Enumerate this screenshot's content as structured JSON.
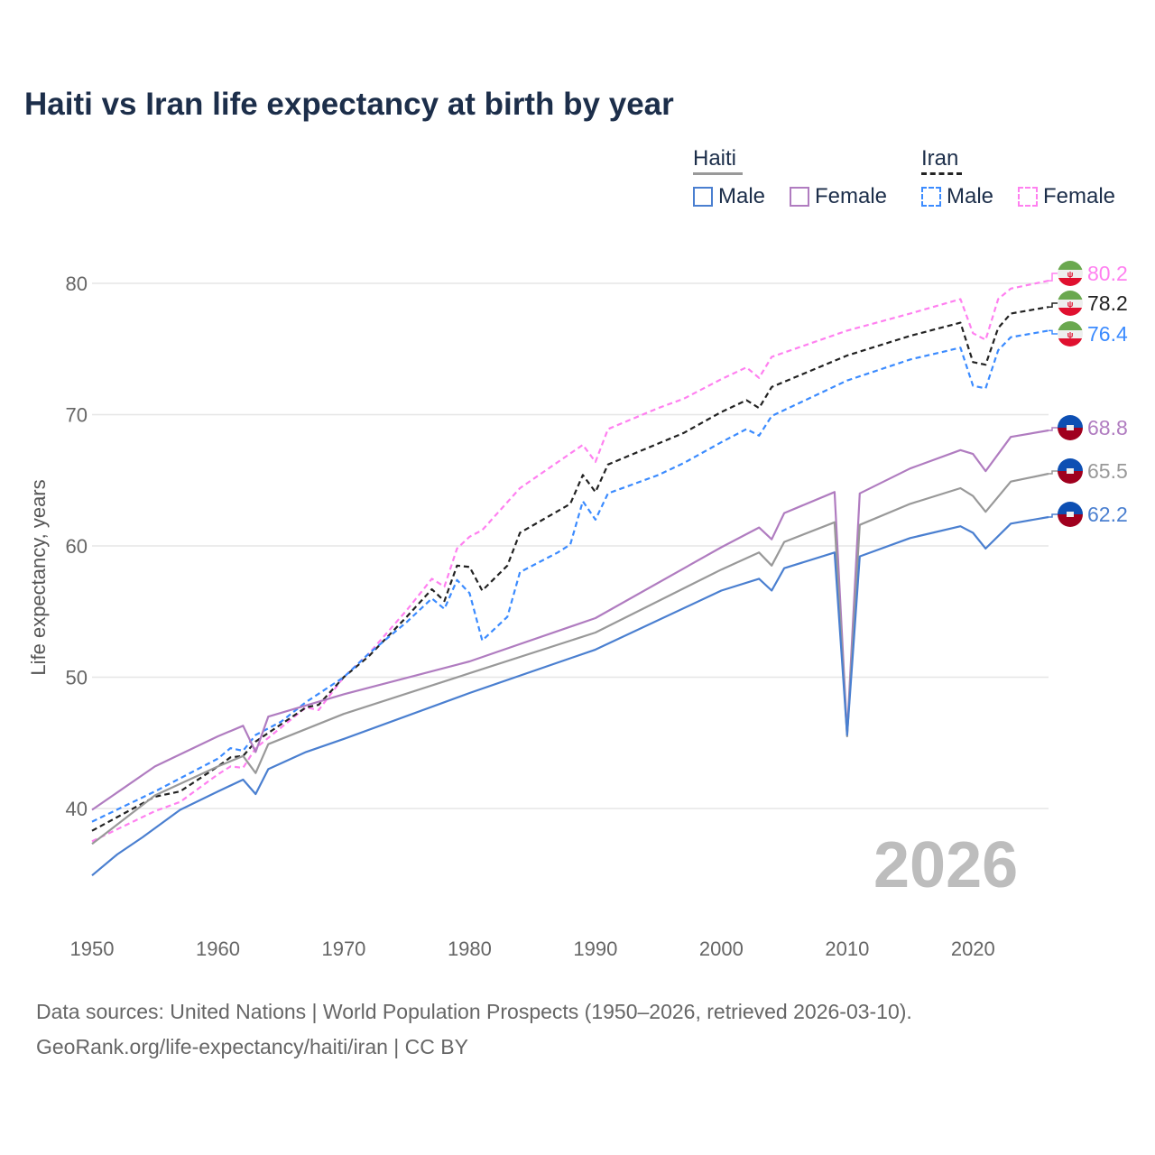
{
  "chart_data": {
    "type": "line",
    "title": "Haiti vs Iran life expectancy at birth by year",
    "xlabel": "",
    "ylabel": "Life expectancy, years",
    "xlim": [
      1950,
      2026
    ],
    "ylim": [
      33,
      82
    ],
    "grid": true,
    "x_ticks": [
      "1950",
      "1960",
      "1970",
      "1980",
      "1990",
      "2000",
      "2010",
      "2020"
    ],
    "y_ticks": [
      "40",
      "50",
      "60",
      "70",
      "80"
    ],
    "legend": {
      "placement": "top-right",
      "groups": [
        {
          "name": "Haiti",
          "color": "#999999",
          "items": [
            "Male",
            "Female"
          ]
        },
        {
          "name": "Iran",
          "color": "#222222",
          "items": [
            "Male",
            "Female"
          ]
        }
      ]
    },
    "watermark_year": "2026",
    "series": [
      {
        "name": "Iran Female",
        "country": "Iran",
        "dashed": true,
        "color": "#ff80f0",
        "end_label": "80.2",
        "x": [
          1950,
          1955,
          1957,
          1960,
          1961,
          1962,
          1963,
          1967,
          1968,
          1970,
          1972,
          1975,
          1977,
          1978,
          1979,
          1980,
          1981,
          1984,
          1989,
          1990,
          1991,
          1995,
          1997,
          2000,
          2002,
          2003,
          2004,
          2010,
          2015,
          2019,
          2020,
          2021,
          2022,
          2023,
          2026
        ],
        "y": [
          37.5,
          39.8,
          40.5,
          42.6,
          43.2,
          43.1,
          44.6,
          47.7,
          47.5,
          50.0,
          51.8,
          55.1,
          57.5,
          56.9,
          59.8,
          60.7,
          61.2,
          64.4,
          67.7,
          66.4,
          68.9,
          70.5,
          71.2,
          72.7,
          73.6,
          72.8,
          74.4,
          76.4,
          77.7,
          78.8,
          76.2,
          75.7,
          78.8,
          79.6,
          80.2
        ]
      },
      {
        "name": "Iran",
        "country": "Iran",
        "dashed": true,
        "color": "#222222",
        "end_label": "78.2",
        "x": [
          1950,
          1955,
          1957,
          1960,
          1961,
          1962,
          1963,
          1967,
          1968,
          1970,
          1972,
          1975,
          1977,
          1978,
          1979,
          1980,
          1981,
          1983,
          1984,
          1988,
          1989,
          1990,
          1991,
          1993,
          1995,
          1997,
          2000,
          2002,
          2003,
          2004,
          2010,
          2015,
          2019,
          2020,
          2021,
          2022,
          2023,
          2026
        ],
        "y": [
          38.3,
          40.9,
          41.3,
          43.2,
          43.9,
          44.0,
          45.1,
          47.7,
          47.9,
          50.0,
          51.6,
          54.6,
          56.7,
          55.8,
          58.5,
          58.4,
          56.6,
          58.5,
          61.0,
          63.2,
          65.4,
          64.1,
          66.2,
          67.0,
          67.8,
          68.6,
          70.2,
          71.1,
          70.5,
          72.1,
          74.5,
          76.0,
          77.0,
          74.0,
          73.8,
          76.6,
          77.7,
          78.2
        ]
      },
      {
        "name": "Iran Male",
        "country": "Iran",
        "dashed": true,
        "color": "#3b8bff",
        "end_label": "76.4",
        "x": [
          1950,
          1955,
          1960,
          1961,
          1962,
          1963,
          1965,
          1967,
          1970,
          1972,
          1975,
          1977,
          1978,
          1979,
          1980,
          1981,
          1983,
          1984,
          1987,
          1988,
          1989,
          1990,
          1991,
          1993,
          1995,
          1997,
          2000,
          2002,
          2003,
          2004,
          2010,
          2015,
          2019,
          2020,
          2021,
          2022,
          2023,
          2026
        ],
        "y": [
          39.0,
          41.3,
          43.8,
          44.6,
          44.4,
          45.6,
          46.6,
          48.1,
          50.0,
          51.8,
          54.2,
          56.0,
          55.2,
          57.4,
          56.4,
          52.8,
          54.6,
          58.0,
          59.5,
          60.1,
          63.4,
          62.0,
          64.0,
          64.7,
          65.4,
          66.3,
          67.9,
          68.9,
          68.4,
          69.9,
          72.6,
          74.2,
          75.1,
          72.2,
          72.0,
          74.9,
          75.9,
          76.4
        ]
      },
      {
        "name": "Haiti Female",
        "country": "Haiti",
        "dashed": false,
        "color": "#b07cc0",
        "end_label": "68.8",
        "x": [
          1950,
          1955,
          1960,
          1962,
          1963,
          1964,
          1970,
          1980,
          1990,
          2000,
          2003,
          2004,
          2005,
          2009,
          2010,
          2011,
          2015,
          2019,
          2020,
          2021,
          2023,
          2026
        ],
        "y": [
          39.9,
          43.2,
          45.5,
          46.3,
          44.3,
          47.0,
          48.7,
          51.2,
          54.5,
          59.9,
          61.4,
          60.5,
          62.5,
          64.1,
          45.7,
          64.0,
          65.9,
          67.3,
          67.0,
          65.7,
          68.3,
          68.8
        ]
      },
      {
        "name": "Haiti",
        "country": "Haiti",
        "dashed": false,
        "color": "#999999",
        "end_label": "65.5",
        "x": [
          1950,
          1955,
          1960,
          1962,
          1963,
          1964,
          1970,
          1980,
          1990,
          2000,
          2003,
          2004,
          2005,
          2009,
          2010,
          2011,
          2015,
          2019,
          2020,
          2021,
          2023,
          2026
        ],
        "y": [
          37.3,
          41.0,
          43.2,
          44.0,
          42.7,
          44.9,
          47.2,
          50.3,
          53.4,
          58.2,
          59.5,
          58.5,
          60.3,
          61.8,
          45.5,
          61.6,
          63.2,
          64.4,
          63.8,
          62.6,
          64.9,
          65.5
        ]
      },
      {
        "name": "Haiti Male",
        "country": "Haiti",
        "dashed": false,
        "color": "#4a7fd0",
        "end_label": "62.2",
        "x": [
          1950,
          1952,
          1954,
          1957,
          1960,
          1962,
          1963,
          1964,
          1967,
          1970,
          1980,
          1990,
          2000,
          2003,
          2004,
          2005,
          2009,
          2010,
          2011,
          2015,
          2019,
          2020,
          2021,
          2023,
          2026
        ],
        "y": [
          34.9,
          36.5,
          37.8,
          39.9,
          41.3,
          42.2,
          41.1,
          43.0,
          44.3,
          45.3,
          48.8,
          52.1,
          56.6,
          57.5,
          56.6,
          58.3,
          59.5,
          45.6,
          59.2,
          60.6,
          61.5,
          61.0,
          59.8,
          61.7,
          62.2
        ]
      }
    ]
  },
  "footer": {
    "line1": "Data sources: United Nations | World Population Prospects (1950–2026, retrieved 2026-03-10).",
    "line2": "GeoRank.org/life-expectancy/haiti/iran | CC BY"
  }
}
